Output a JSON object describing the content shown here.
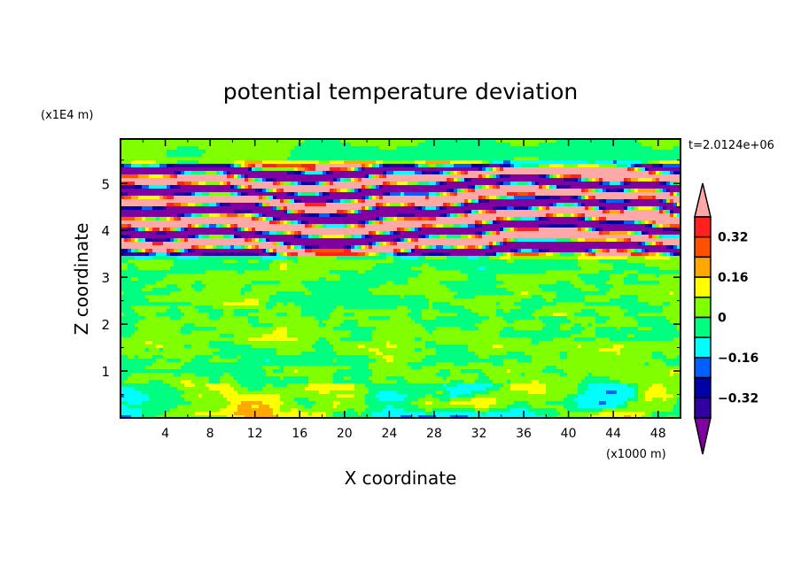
{
  "chart_data": {
    "type": "heatmap",
    "title": "potential temperature deviation",
    "xlabel": "X coordinate",
    "ylabel": "Z coordinate",
    "x_unit": "(x1000 m)",
    "y_unit": "(x1E4 m)",
    "time_label": "t=2.0124e+06",
    "xlim": [
      0,
      50
    ],
    "ylim": [
      0,
      5.95
    ],
    "xticks": [
      4,
      8,
      12,
      16,
      20,
      24,
      28,
      32,
      36,
      40,
      44,
      48
    ],
    "yticks": [
      1,
      2,
      3,
      4,
      5
    ],
    "grid": false,
    "contour_levels": [
      -0.4,
      -0.32,
      -0.24,
      -0.16,
      -0.08,
      0,
      0.08,
      0.16,
      0.24,
      0.32,
      0.4
    ],
    "colorbar_labels": [
      "0.32",
      "0.16",
      "0",
      "-0.16",
      "-0.32"
    ],
    "colorbar_label_values": [
      0.32,
      0.16,
      0,
      -0.16,
      -0.32
    ],
    "colors": [
      "#8000a0",
      "#3000a0",
      "#0000a8",
      "#0060ff",
      "#00ffff",
      "#00ff80",
      "#80ff00",
      "#ffff00",
      "#ffa800",
      "#ff5000",
      "#ff2020",
      "#ffa8a8"
    ],
    "legend_placement": "right",
    "field_description_bands": {
      "strong_layer_z": [
        3.4,
        5.5
      ],
      "weak_layer_z": [
        0,
        3.4
      ]
    }
  }
}
